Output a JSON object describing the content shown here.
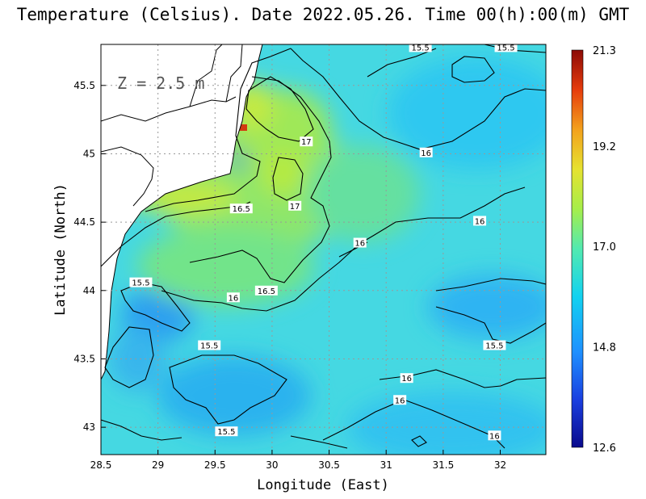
{
  "title": "Temperature (Celsius). Date 2022.05.26. Time 00(h):00(m) GMT",
  "depth_label": "Z = 2.5 m",
  "chart_data": {
    "type": "heatmap",
    "title": "Temperature (Celsius). Date 2022.05.26. Time 00(h):00(m) GMT",
    "xlabel": "Longitude (East)",
    "ylabel": "Latitude (North)",
    "xlim": [
      28.5,
      32.4
    ],
    "ylim": [
      42.8,
      45.8
    ],
    "x_ticks": [
      {
        "value": 28.5,
        "label": "28.5"
      },
      {
        "value": 29,
        "label": "29"
      },
      {
        "value": 29.5,
        "label": "29.5"
      },
      {
        "value": 30,
        "label": "30"
      },
      {
        "value": 30.5,
        "label": "30.5"
      },
      {
        "value": 31,
        "label": "31"
      },
      {
        "value": 31.5,
        "label": "31.5"
      },
      {
        "value": 32,
        "label": "32"
      }
    ],
    "y_ticks": [
      {
        "value": 43,
        "label": "43"
      },
      {
        "value": 43.5,
        "label": "43.5"
      },
      {
        "value": 44,
        "label": "44"
      },
      {
        "value": 44.5,
        "label": "44.5"
      },
      {
        "value": 45,
        "label": "45"
      },
      {
        "value": 45.5,
        "label": "45.5"
      }
    ],
    "grid": true,
    "colorbar": {
      "min": 12.6,
      "max": 21.3,
      "ticks": [
        {
          "value": 21.3,
          "label": "21.3"
        },
        {
          "value": 19.2,
          "label": "19.2"
        },
        {
          "value": 17.0,
          "label": "17.0"
        },
        {
          "value": 14.8,
          "label": "14.8"
        },
        {
          "value": 12.6,
          "label": "12.6"
        }
      ],
      "colors": [
        "#0a0a8c",
        "#1a3fe0",
        "#1e90ff",
        "#12d2f0",
        "#52eab0",
        "#a6ee4a",
        "#e6e230",
        "#f3a11c",
        "#e63c0c",
        "#8c0a06"
      ]
    },
    "contour_labels": [
      {
        "lon": 31.3,
        "lat": 45.78,
        "label": "15.5"
      },
      {
        "lon": 32.05,
        "lat": 45.78,
        "label": "15.5"
      },
      {
        "lon": 30.3,
        "lat": 45.09,
        "label": "17"
      },
      {
        "lon": 31.35,
        "lat": 45.01,
        "label": "16"
      },
      {
        "lon": 30.2,
        "lat": 44.62,
        "label": "17"
      },
      {
        "lon": 29.73,
        "lat": 44.6,
        "label": "16.5"
      },
      {
        "lon": 31.82,
        "lat": 44.51,
        "label": "16"
      },
      {
        "lon": 30.77,
        "lat": 44.35,
        "label": "16"
      },
      {
        "lon": 28.85,
        "lat": 44.06,
        "label": "15.5"
      },
      {
        "lon": 29.66,
        "lat": 43.95,
        "label": "16"
      },
      {
        "lon": 29.95,
        "lat": 44.0,
        "label": "16.5"
      },
      {
        "lon": 29.45,
        "lat": 43.6,
        "label": "15.5"
      },
      {
        "lon": 31.95,
        "lat": 43.6,
        "label": "15.5"
      },
      {
        "lon": 31.18,
        "lat": 43.36,
        "label": "16"
      },
      {
        "lon": 31.12,
        "lat": 43.2,
        "label": "16"
      },
      {
        "lon": 29.6,
        "lat": 42.97,
        "label": "15.5"
      },
      {
        "lon": 31.95,
        "lat": 42.94,
        "label": "16"
      }
    ]
  }
}
